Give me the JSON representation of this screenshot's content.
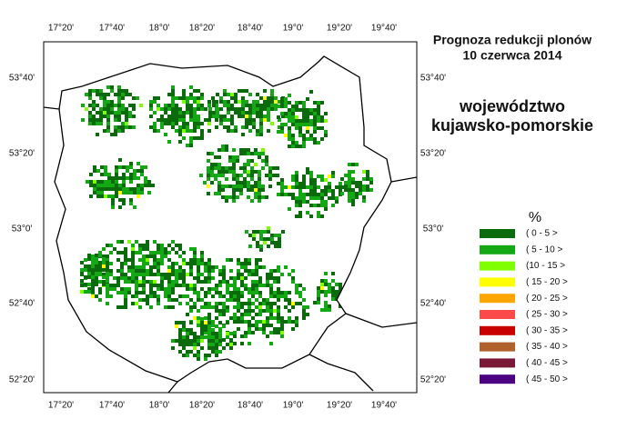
{
  "title": [
    "Prognoza redukcji plonów",
    "10 czerwca 2014"
  ],
  "region": [
    "województwo",
    "kujawsko-pomorskie"
  ],
  "lon_labels": [
    "17°20'",
    "17°40'",
    "18°0'",
    "18°20'",
    "18°40'",
    "19°0'",
    "19°20'",
    "19°40'"
  ],
  "lat_labels": [
    "53°40'",
    "53°20'",
    "53°0'",
    "52°40'",
    "52°20'"
  ],
  "legend": {
    "title": "%",
    "items": [
      {
        "label": "( 0 - 5 >",
        "color": "#0b6a0b"
      },
      {
        "label": "( 5 - 10 >",
        "color": "#14a814"
      },
      {
        "label": "(10 - 15 >",
        "color": "#80ff00"
      },
      {
        "label": "( 15 - 20 >",
        "color": "#ffff00"
      },
      {
        "label": "( 20 - 25 >",
        "color": "#ffa500"
      },
      {
        "label": "( 25 - 30 >",
        "color": "#ff4a4a"
      },
      {
        "label": "( 30 - 35 >",
        "color": "#c80000"
      },
      {
        "label": "( 35 - 40 >",
        "color": "#b0602a"
      },
      {
        "label": "( 40 - 45 >",
        "color": "#7a1838"
      },
      {
        "label": "( 45 - 50 >",
        "color": "#4b0082"
      }
    ]
  }
}
